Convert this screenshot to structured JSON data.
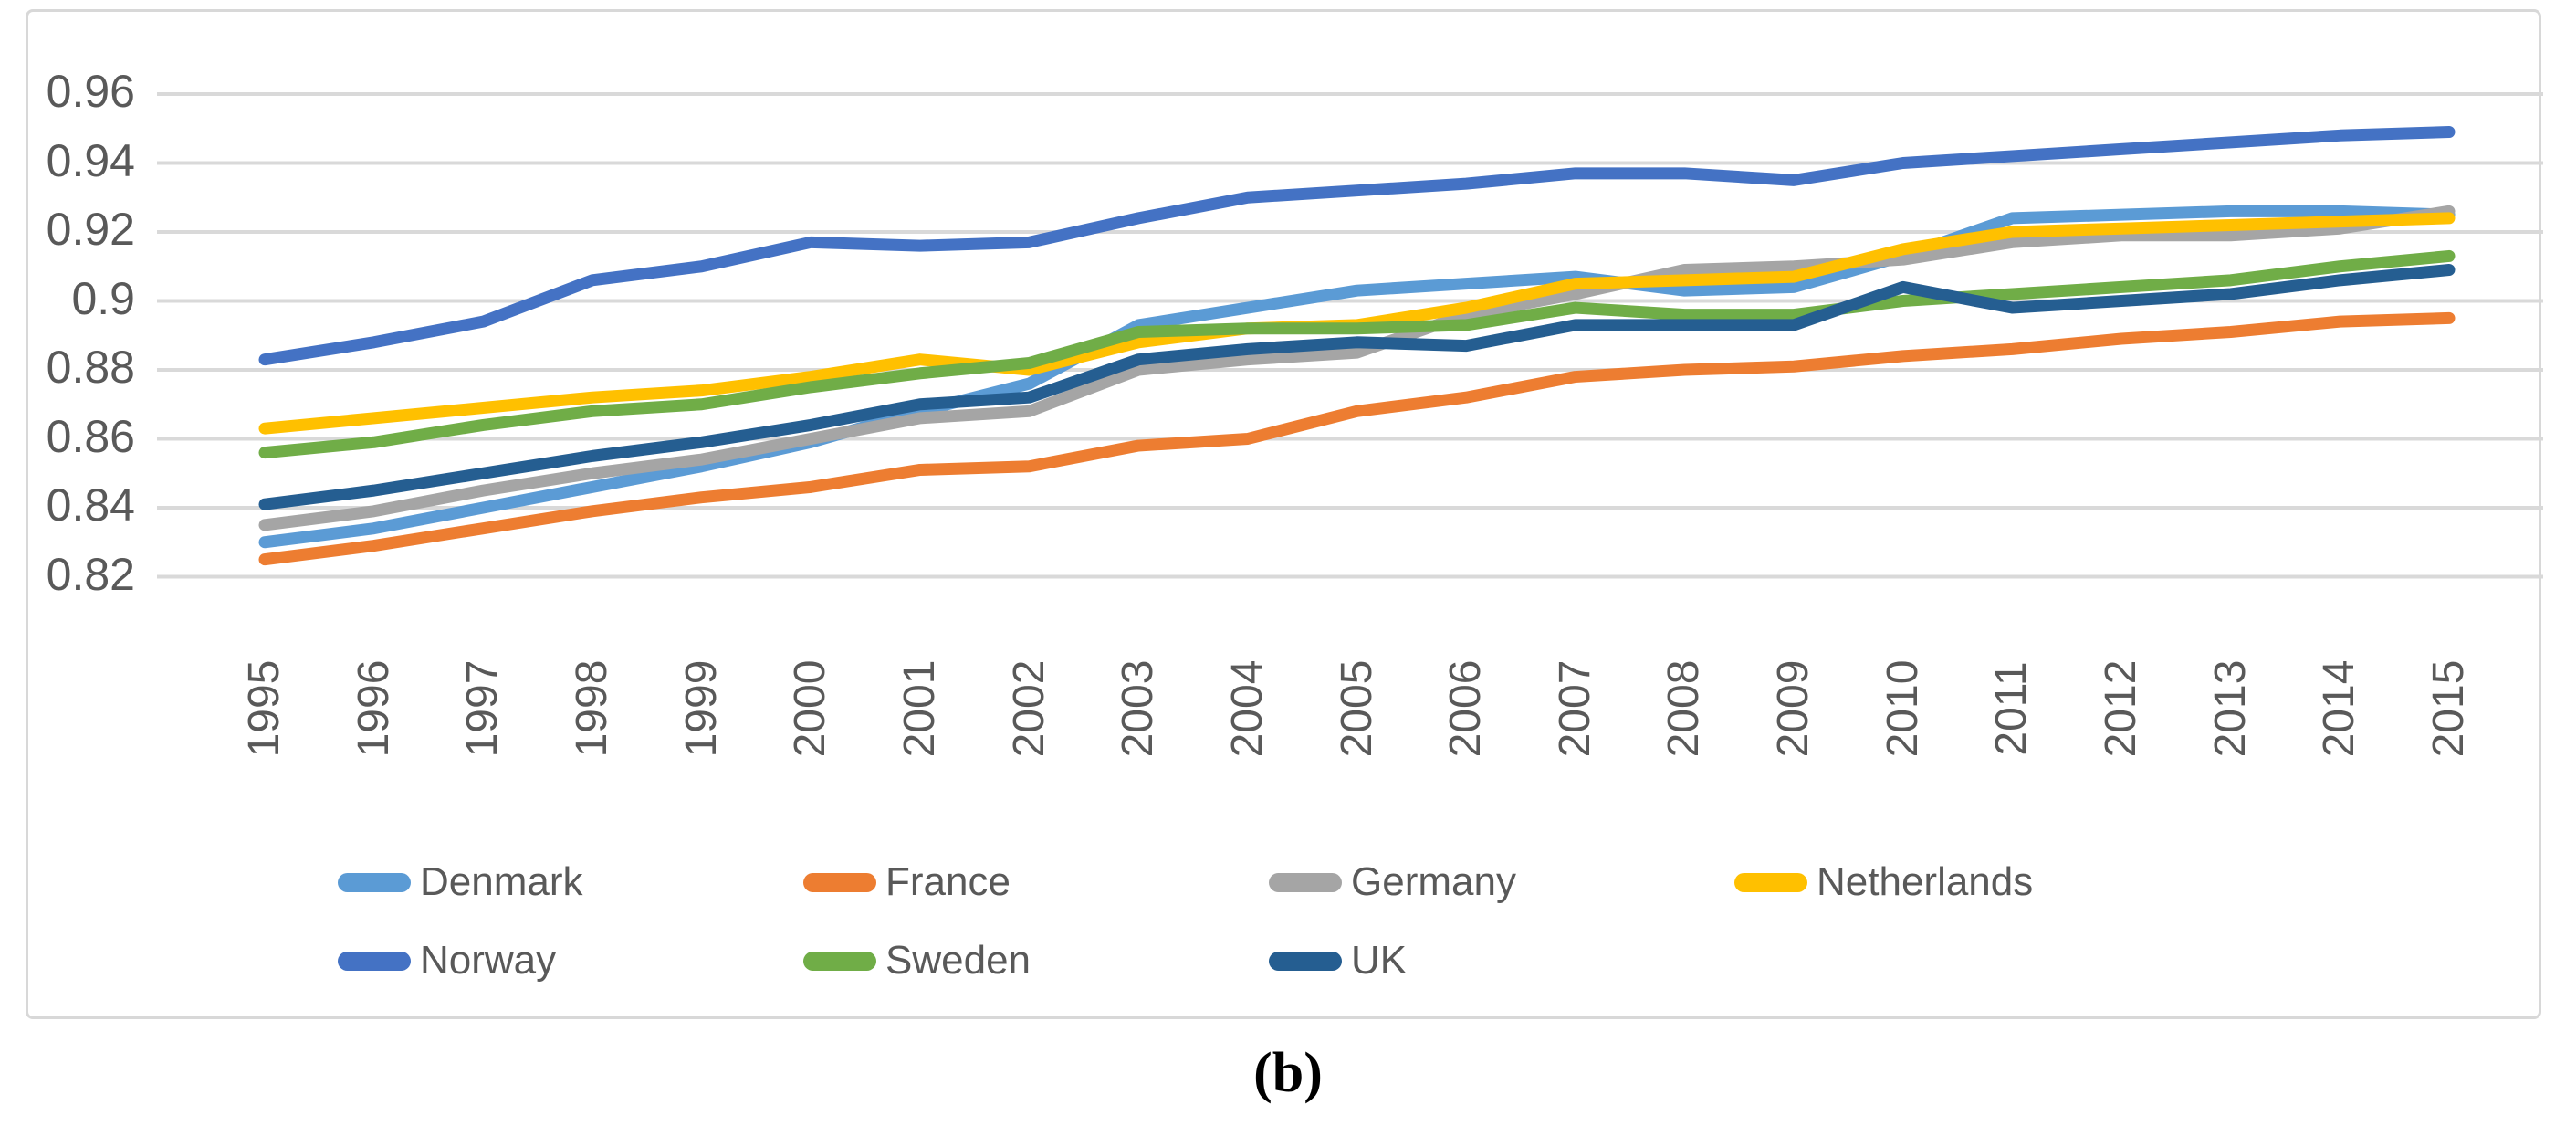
{
  "caption": "(b)",
  "chart_data": {
    "type": "line",
    "title": "",
    "xlabel": "",
    "ylabel": "",
    "grid": true,
    "legend_position": "bottom",
    "ylim": [
      0.82,
      0.96
    ],
    "yticks": [
      0.96,
      0.94,
      0.92,
      0.9,
      0.88,
      0.86,
      0.84,
      0.82
    ],
    "ytick_labels": [
      "0.96",
      "0.94",
      "0.92",
      "0.9",
      "0.88",
      "0.86",
      "0.84",
      "0.82"
    ],
    "x": [
      1995,
      1996,
      1997,
      1998,
      1999,
      2000,
      2001,
      2002,
      2003,
      2004,
      2005,
      2006,
      2007,
      2008,
      2009,
      2010,
      2011,
      2012,
      2013,
      2014,
      2015
    ],
    "series": [
      {
        "name": "Denmark",
        "color": "#5B9BD5",
        "values": [
          0.83,
          0.834,
          0.84,
          0.846,
          0.852,
          0.859,
          0.868,
          0.876,
          0.893,
          0.898,
          0.903,
          0.905,
          0.907,
          0.903,
          0.904,
          0.913,
          0.924,
          0.925,
          0.926,
          0.926,
          0.925
        ]
      },
      {
        "name": "France",
        "color": "#ED7D31",
        "values": [
          0.825,
          0.829,
          0.834,
          0.839,
          0.843,
          0.846,
          0.851,
          0.852,
          0.858,
          0.86,
          0.868,
          0.872,
          0.878,
          0.88,
          0.881,
          0.884,
          0.886,
          0.889,
          0.891,
          0.894,
          0.895
        ]
      },
      {
        "name": "Germany",
        "color": "#A5A5A5",
        "values": [
          0.835,
          0.839,
          0.845,
          0.85,
          0.854,
          0.86,
          0.866,
          0.868,
          0.88,
          0.883,
          0.885,
          0.896,
          0.902,
          0.909,
          0.91,
          0.912,
          0.917,
          0.919,
          0.919,
          0.921,
          0.926
        ]
      },
      {
        "name": "Netherlands",
        "color": "#FFC000",
        "values": [
          0.863,
          0.866,
          0.869,
          0.872,
          0.874,
          0.878,
          0.883,
          0.88,
          0.888,
          0.892,
          0.893,
          0.898,
          0.905,
          0.906,
          0.907,
          0.915,
          0.92,
          0.921,
          0.922,
          0.923,
          0.924
        ]
      },
      {
        "name": "Norway",
        "color": "#4472C4",
        "values": [
          0.883,
          0.888,
          0.894,
          0.906,
          0.91,
          0.917,
          0.916,
          0.917,
          0.924,
          0.93,
          0.932,
          0.934,
          0.937,
          0.937,
          0.935,
          0.94,
          0.942,
          0.944,
          0.946,
          0.948,
          0.949
        ]
      },
      {
        "name": "Sweden",
        "color": "#70AD47",
        "values": [
          0.856,
          0.859,
          0.864,
          0.868,
          0.87,
          0.875,
          0.879,
          0.882,
          0.891,
          0.892,
          0.892,
          0.893,
          0.898,
          0.896,
          0.896,
          0.9,
          0.902,
          0.904,
          0.906,
          0.91,
          0.913
        ]
      },
      {
        "name": "UK",
        "color": "#255E91",
        "values": [
          0.841,
          0.845,
          0.85,
          0.855,
          0.859,
          0.864,
          0.87,
          0.872,
          0.883,
          0.886,
          0.888,
          0.887,
          0.893,
          0.893,
          0.893,
          0.904,
          0.898,
          0.9,
          0.902,
          0.906,
          0.909
        ]
      }
    ]
  },
  "legend": {
    "rows": [
      [
        "Denmark",
        "France",
        "Germany",
        "Netherlands"
      ],
      [
        "Norway",
        "Sweden",
        "UK"
      ]
    ]
  },
  "style": {
    "gridline_color": "#D9D9D9",
    "axis_text_color": "#595959",
    "frame_color": "#D8D8D8",
    "background": "#FFFFFF"
  }
}
